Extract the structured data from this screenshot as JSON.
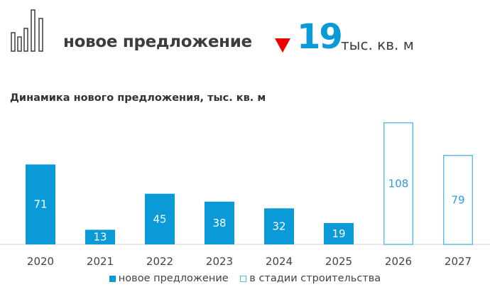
{
  "header": {
    "logo_icon": "bar-columns-outline-icon",
    "label": "новое предложение",
    "trend_icon": "down-triangle-icon",
    "trend_color": "#ee0000",
    "value": "19",
    "unit": "тыс. кв. м"
  },
  "chart_data": {
    "type": "bar",
    "title": "Динамика нового предложения, тыс. кв. м",
    "categories": [
      "2020",
      "2021",
      "2022",
      "2023",
      "2024",
      "2025",
      "2026",
      "2027"
    ],
    "series": [
      {
        "name": "новое предложение",
        "style": "filled",
        "color": "#0a9ad7",
        "values": [
          71,
          13,
          45,
          38,
          32,
          19,
          null,
          null
        ]
      },
      {
        "name": "в стадии строительства",
        "style": "outline",
        "color": "#5bb9e6",
        "values": [
          null,
          null,
          null,
          null,
          null,
          null,
          108,
          79
        ]
      }
    ],
    "ylim": [
      0,
      110
    ],
    "grid": false,
    "legend": "bottom"
  }
}
